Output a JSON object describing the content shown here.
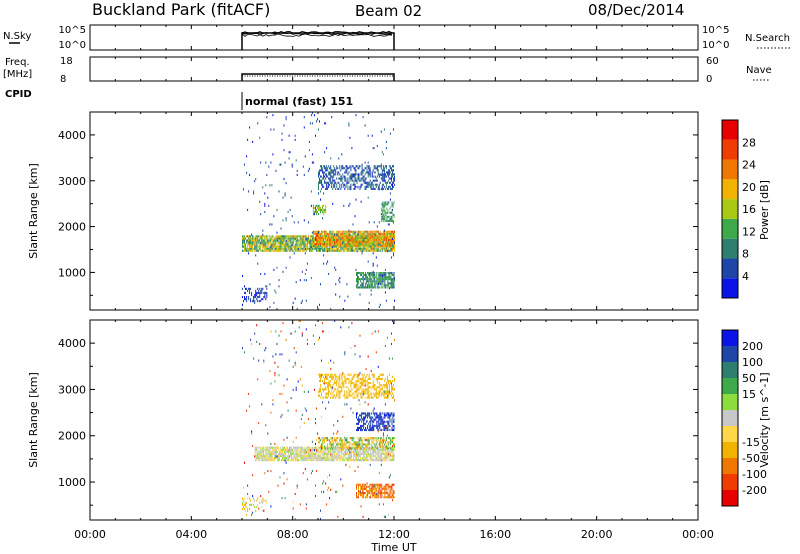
{
  "header": {
    "station": "Buckland Park (fitACF)",
    "beam": "Beam 02",
    "date": "08/Dec/2014"
  },
  "nsky_panel": {
    "label": "N.Sky",
    "ticks": [
      "10^5",
      "10^0"
    ],
    "right_label": "N.Search",
    "right_ticks": [
      "10^5",
      "10^0"
    ],
    "active_range": [
      "06:00",
      "12:00"
    ]
  },
  "freq_panel": {
    "label_line1": "Freq.",
    "label_line2": "[MHz]",
    "left_ticks": [
      "18",
      "8"
    ],
    "right_label": "Nave",
    "right_ticks": [
      "60",
      "0"
    ],
    "active_range": [
      "06:00",
      "12:00"
    ]
  },
  "cpid": {
    "label": "CPID",
    "mode": "normal (fast) 151"
  },
  "x_axis": {
    "label": "Time UT",
    "ticks": [
      "00:00",
      "04:00",
      "08:00",
      "12:00",
      "16:00",
      "20:00",
      "00:00"
    ],
    "hours": [
      0,
      4,
      8,
      12,
      16,
      20,
      24
    ]
  },
  "colors": {
    "power": [
      "#0a14e6",
      "#1e46a8",
      "#2f7f6e",
      "#3fa84a",
      "#a8c814",
      "#f0b400",
      "#f07800",
      "#f03c00",
      "#e60000"
    ],
    "velocity": [
      "#e60000",
      "#f03c00",
      "#f07800",
      "#f0b400",
      "#ffd84a",
      "#c8c8c8",
      "#8cdc3c",
      "#3fa84a",
      "#2f7f6e",
      "#1e46a8",
      "#0a14e6"
    ]
  },
  "chart_data": [
    {
      "type": "heatmap",
      "name": "power-panel",
      "ylabel": "Slant Range [km]",
      "yticks": [
        1000,
        2000,
        3000,
        4000
      ],
      "ylim": [
        180,
        4500
      ],
      "xlim": [
        0,
        24
      ],
      "data_extent_hours": [
        6,
        12
      ],
      "colorbar": {
        "label": "Power [dB]",
        "ticks": [
          4,
          8,
          12,
          16,
          20,
          24,
          28
        ],
        "range": [
          0,
          32
        ]
      },
      "regions": [
        {
          "t": [
            6.0,
            12.0
          ],
          "r": [
            1450,
            1800
          ],
          "v": [
            8,
            22
          ],
          "density": 0.85
        },
        {
          "t": [
            8.8,
            12.0
          ],
          "r": [
            1550,
            1900
          ],
          "v": [
            12,
            26
          ],
          "density": 0.9
        },
        {
          "t": [
            10.5,
            12.0
          ],
          "r": [
            650,
            1000
          ],
          "v": [
            6,
            14
          ],
          "density": 0.8
        },
        {
          "t": [
            9.0,
            12.0
          ],
          "r": [
            2800,
            3300
          ],
          "v": [
            3,
            9
          ],
          "density": 0.5
        },
        {
          "t": [
            8.8,
            9.3
          ],
          "r": [
            2250,
            2450
          ],
          "v": [
            12,
            18
          ],
          "density": 0.6
        },
        {
          "t": [
            11.5,
            12.0
          ],
          "r": [
            2100,
            2550
          ],
          "v": [
            8,
            14
          ],
          "density": 0.6
        },
        {
          "t": [
            6.0,
            7.0
          ],
          "r": [
            350,
            650
          ],
          "v": [
            2,
            6
          ],
          "density": 0.3
        },
        {
          "t": [
            6.0,
            12.0
          ],
          "r": [
            180,
            4500
          ],
          "v": [
            2,
            8
          ],
          "density": 0.02
        }
      ]
    },
    {
      "type": "heatmap",
      "name": "velocity-panel",
      "ylabel": "Slant Range [km]",
      "yticks": [
        1000,
        2000,
        3000,
        4000
      ],
      "ylim": [
        180,
        4500
      ],
      "xlim": [
        0,
        24
      ],
      "data_extent_hours": [
        6,
        12
      ],
      "colorbar": {
        "label": "Velocity [m s^-1]",
        "ticks": [
          -200,
          -100,
          -50,
          -15,
          15,
          50,
          100,
          200
        ]
      },
      "regions": [
        {
          "t": [
            6.5,
            12.0
          ],
          "r": [
            1450,
            1750
          ],
          "v": [
            -10,
            10
          ],
          "density": 0.85
        },
        {
          "t": [
            9.0,
            12.0
          ],
          "r": [
            1700,
            1950
          ],
          "v": [
            -60,
            40
          ],
          "density": 0.6
        },
        {
          "t": [
            10.5,
            12.0
          ],
          "r": [
            650,
            950
          ],
          "v": [
            -120,
            -40
          ],
          "density": 0.75
        },
        {
          "t": [
            9.0,
            12.0
          ],
          "r": [
            2800,
            3300
          ],
          "v": [
            -40,
            -10
          ],
          "density": 0.5
        },
        {
          "t": [
            10.5,
            12.0
          ],
          "r": [
            2100,
            2500
          ],
          "v": [
            100,
            250
          ],
          "density": 0.6
        },
        {
          "t": [
            6.0,
            7.0
          ],
          "r": [
            350,
            650
          ],
          "v": [
            -40,
            10
          ],
          "density": 0.3
        },
        {
          "t": [
            6.0,
            12.0
          ],
          "r": [
            180,
            4500
          ],
          "v": [
            -250,
            250
          ],
          "density": 0.02
        }
      ]
    }
  ]
}
